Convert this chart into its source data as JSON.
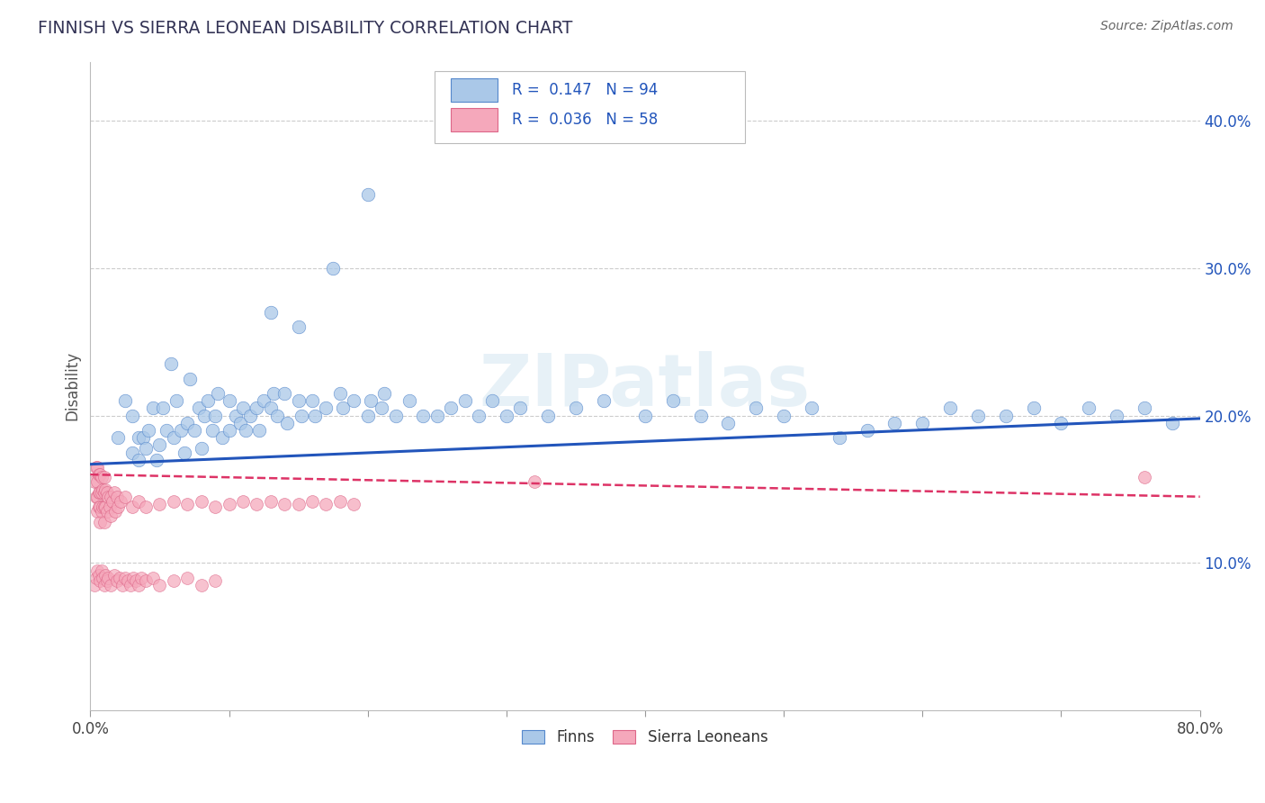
{
  "title": "FINNISH VS SIERRA LEONEAN DISABILITY CORRELATION CHART",
  "source": "Source: ZipAtlas.com",
  "ylabel": "Disability",
  "xlim": [
    0.0,
    0.8
  ],
  "ylim": [
    0.0,
    0.44
  ],
  "yticks": [
    0.1,
    0.2,
    0.3,
    0.4
  ],
  "yticklabels": [
    "10.0%",
    "20.0%",
    "30.0%",
    "40.0%"
  ],
  "xtick_left": "0.0%",
  "xtick_right": "80.0%",
  "legend_r1": "R =  0.147",
  "legend_n1": "N = 94",
  "legend_r2": "R =  0.036",
  "legend_n2": "N = 58",
  "finn_color": "#aac8e8",
  "finn_edge": "#5588cc",
  "sl_color": "#f5a8bb",
  "sl_edge": "#dd6688",
  "finn_line_color": "#2255bb",
  "sl_line_color": "#dd3366",
  "legend_text_color": "#2255bb",
  "ytick_color": "#2255bb",
  "finn_x": [
    0.02,
    0.025,
    0.03,
    0.03,
    0.035,
    0.035,
    0.038,
    0.04,
    0.042,
    0.045,
    0.048,
    0.05,
    0.052,
    0.055,
    0.058,
    0.06,
    0.062,
    0.065,
    0.068,
    0.07,
    0.072,
    0.075,
    0.078,
    0.08,
    0.082,
    0.085,
    0.088,
    0.09,
    0.092,
    0.095,
    0.1,
    0.1,
    0.105,
    0.108,
    0.11,
    0.112,
    0.115,
    0.12,
    0.122,
    0.125,
    0.13,
    0.132,
    0.135,
    0.14,
    0.142,
    0.15,
    0.152,
    0.16,
    0.162,
    0.17,
    0.18,
    0.182,
    0.19,
    0.2,
    0.202,
    0.21,
    0.212,
    0.22,
    0.23,
    0.24,
    0.25,
    0.26,
    0.27,
    0.28,
    0.29,
    0.3,
    0.31,
    0.33,
    0.35,
    0.37,
    0.4,
    0.42,
    0.44,
    0.46,
    0.48,
    0.5,
    0.52,
    0.54,
    0.56,
    0.58,
    0.6,
    0.62,
    0.64,
    0.66,
    0.68,
    0.7,
    0.72,
    0.74,
    0.76,
    0.78,
    0.13,
    0.15,
    0.175,
    0.2
  ],
  "finn_y": [
    0.185,
    0.21,
    0.175,
    0.2,
    0.17,
    0.185,
    0.185,
    0.178,
    0.19,
    0.205,
    0.17,
    0.18,
    0.205,
    0.19,
    0.235,
    0.185,
    0.21,
    0.19,
    0.175,
    0.195,
    0.225,
    0.19,
    0.205,
    0.178,
    0.2,
    0.21,
    0.19,
    0.2,
    0.215,
    0.185,
    0.19,
    0.21,
    0.2,
    0.195,
    0.205,
    0.19,
    0.2,
    0.205,
    0.19,
    0.21,
    0.205,
    0.215,
    0.2,
    0.215,
    0.195,
    0.21,
    0.2,
    0.21,
    0.2,
    0.205,
    0.215,
    0.205,
    0.21,
    0.2,
    0.21,
    0.205,
    0.215,
    0.2,
    0.21,
    0.2,
    0.2,
    0.205,
    0.21,
    0.2,
    0.21,
    0.2,
    0.205,
    0.2,
    0.205,
    0.21,
    0.2,
    0.21,
    0.2,
    0.195,
    0.205,
    0.2,
    0.205,
    0.185,
    0.19,
    0.195,
    0.195,
    0.205,
    0.2,
    0.2,
    0.205,
    0.195,
    0.205,
    0.2,
    0.205,
    0.195,
    0.27,
    0.26,
    0.3,
    0.35
  ],
  "sl_x": [
    0.003,
    0.004,
    0.004,
    0.005,
    0.005,
    0.005,
    0.005,
    0.006,
    0.006,
    0.006,
    0.007,
    0.007,
    0.007,
    0.007,
    0.008,
    0.008,
    0.008,
    0.009,
    0.009,
    0.01,
    0.01,
    0.01,
    0.01,
    0.011,
    0.011,
    0.012,
    0.012,
    0.013,
    0.014,
    0.015,
    0.015,
    0.016,
    0.017,
    0.018,
    0.019,
    0.02,
    0.022,
    0.025,
    0.03,
    0.035,
    0.04,
    0.05,
    0.06,
    0.07,
    0.08,
    0.09,
    0.1,
    0.11,
    0.12,
    0.13,
    0.14,
    0.15,
    0.16,
    0.17,
    0.18,
    0.19,
    0.32,
    0.76
  ],
  "sl_y": [
    0.155,
    0.165,
    0.145,
    0.165,
    0.155,
    0.145,
    0.135,
    0.16,
    0.148,
    0.138,
    0.16,
    0.148,
    0.138,
    0.128,
    0.158,
    0.148,
    0.135,
    0.15,
    0.138,
    0.158,
    0.148,
    0.138,
    0.128,
    0.15,
    0.138,
    0.148,
    0.135,
    0.145,
    0.138,
    0.145,
    0.132,
    0.142,
    0.148,
    0.135,
    0.145,
    0.138,
    0.142,
    0.145,
    0.138,
    0.142,
    0.138,
    0.14,
    0.142,
    0.14,
    0.142,
    0.138,
    0.14,
    0.142,
    0.14,
    0.142,
    0.14,
    0.14,
    0.142,
    0.14,
    0.142,
    0.14,
    0.155,
    0.158
  ],
  "finn_trend_x": [
    0.0,
    0.8
  ],
  "finn_trend_y": [
    0.167,
    0.198
  ],
  "sl_trend_x": [
    0.0,
    0.8
  ],
  "sl_trend_y": [
    0.16,
    0.145
  ],
  "sl_low_x": [
    0.003,
    0.004,
    0.005,
    0.006,
    0.007,
    0.008,
    0.009,
    0.01,
    0.011,
    0.012,
    0.013,
    0.015,
    0.017,
    0.019,
    0.021,
    0.023,
    0.025,
    0.027,
    0.029,
    0.031,
    0.033,
    0.035,
    0.037,
    0.04,
    0.045,
    0.05,
    0.06,
    0.07,
    0.08,
    0.09
  ],
  "sl_low_y": [
    0.085,
    0.09,
    0.095,
    0.092,
    0.088,
    0.095,
    0.09,
    0.085,
    0.092,
    0.088,
    0.09,
    0.085,
    0.092,
    0.088,
    0.09,
    0.085,
    0.09,
    0.088,
    0.085,
    0.09,
    0.088,
    0.085,
    0.09,
    0.088,
    0.09,
    0.085,
    0.088,
    0.09,
    0.085,
    0.088
  ]
}
